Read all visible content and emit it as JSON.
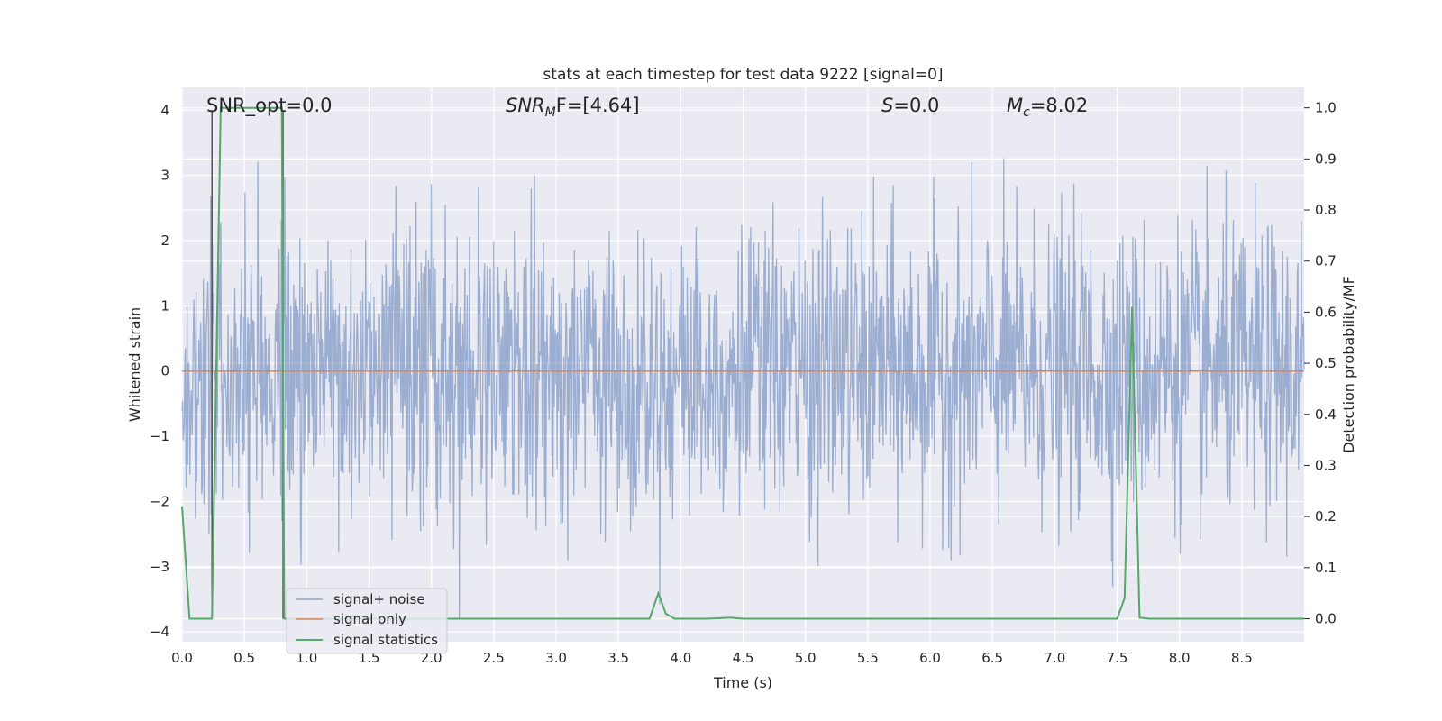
{
  "chart_data": {
    "type": "line",
    "title": "stats at each timestep for test data 9222 [signal=0]",
    "xlabel": "Time (s)",
    "ylabel_left": "Whitened strain",
    "ylabel_right": "Detection probability/MF",
    "xlim": [
      0.0,
      9.0
    ],
    "ylim_left": [
      -4.15,
      4.35
    ],
    "ylim_right": [
      -0.045,
      1.04
    ],
    "x_ticks": [
      "0.0",
      "0.5",
      "1.0",
      "1.5",
      "2.0",
      "2.5",
      "3.0",
      "3.5",
      "4.0",
      "4.5",
      "5.0",
      "5.5",
      "6.0",
      "6.5",
      "7.0",
      "7.5",
      "8.0",
      "8.5"
    ],
    "y_left_ticks": [
      "4",
      "3",
      "2",
      "1",
      "0",
      "−1",
      "−2",
      "−3",
      "−4"
    ],
    "y_right_ticks": [
      "1.0",
      "0.9",
      "0.8",
      "0.7",
      "0.6",
      "0.5",
      "0.4",
      "0.3",
      "0.2",
      "0.1",
      "0.0"
    ],
    "grid": true,
    "legend_position": "lower-left",
    "annotations": {
      "snr_opt": "SNR_opt=0.0",
      "snr_mf_prefix": "SNR",
      "snr_mf_sub": "M",
      "snr_mf_suffix": "F=[4.64]",
      "s_prefix": "S",
      "s_suffix": "=0.0",
      "mc_prefix": "M",
      "mc_sub": "c",
      "mc_suffix": "=8.02"
    },
    "vertical_markers_s": [
      0.24,
      0.81
    ],
    "series": [
      {
        "name": "signal+ noise",
        "color": "#4c72b0",
        "description_axis": "left",
        "noise_std": 1.0,
        "sample_count": 2000
      },
      {
        "name": "signal only",
        "color": "#dd8452",
        "description_axis": "left",
        "values": [
          [
            0.0,
            0.0
          ],
          [
            9.0,
            0.0
          ]
        ]
      },
      {
        "name": "signal statistics",
        "color": "#55a868",
        "description_axis": "right",
        "points": [
          [
            0.0,
            0.22
          ],
          [
            0.06,
            0.0
          ],
          [
            0.2,
            0.0
          ],
          [
            0.24,
            0.0
          ],
          [
            0.31,
            1.0
          ],
          [
            0.5,
            1.0
          ],
          [
            0.8,
            1.0
          ],
          [
            0.82,
            0.0
          ],
          [
            3.75,
            0.0
          ],
          [
            3.82,
            0.05
          ],
          [
            3.88,
            0.01
          ],
          [
            3.95,
            0.0
          ],
          [
            4.2,
            0.0
          ],
          [
            4.4,
            0.002
          ],
          [
            4.5,
            0.0
          ],
          [
            7.5,
            0.0
          ],
          [
            7.56,
            0.04
          ],
          [
            7.62,
            0.61
          ],
          [
            7.68,
            0.002
          ],
          [
            7.76,
            0.0
          ],
          [
            9.0,
            0.0
          ]
        ]
      }
    ]
  }
}
